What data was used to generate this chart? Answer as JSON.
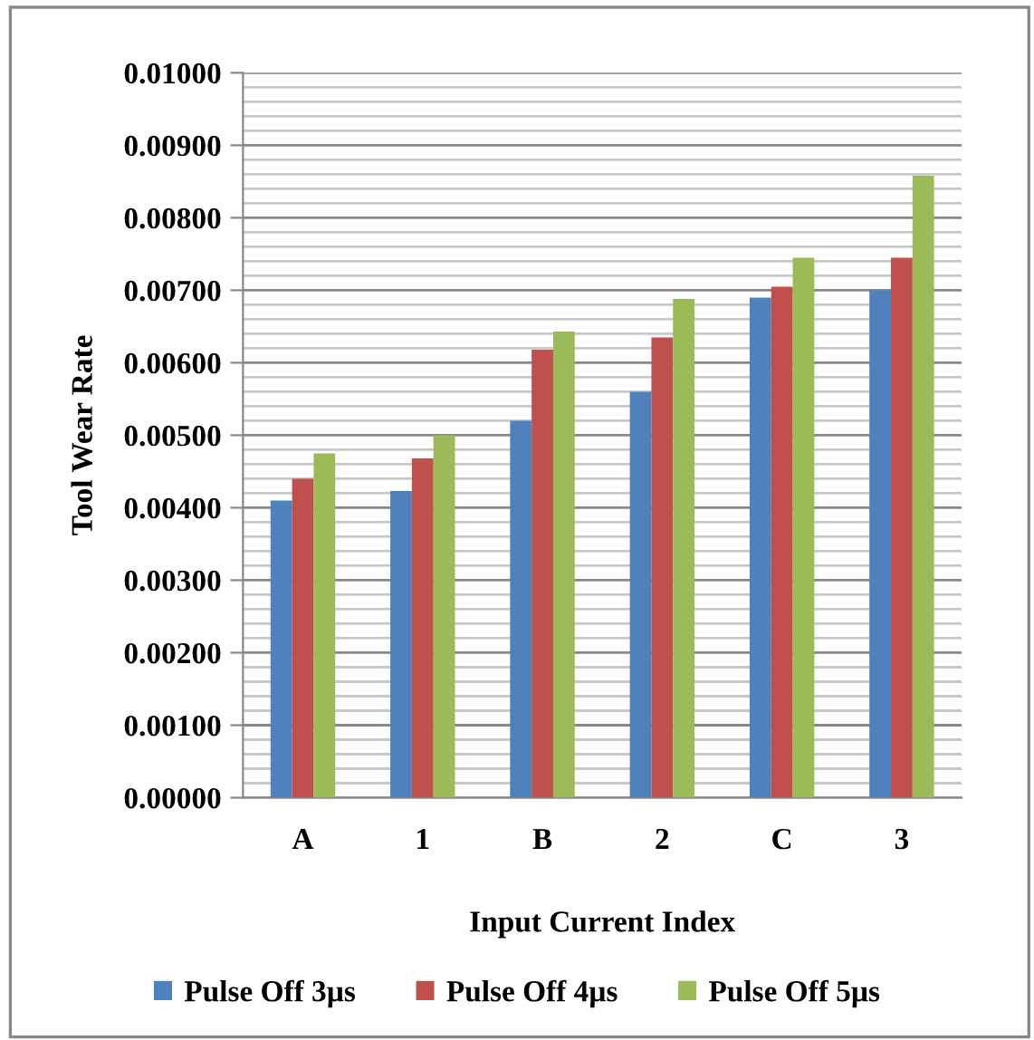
{
  "chart_data": {
    "type": "bar",
    "xlabel": "Input Current Index",
    "ylabel": "Tool Wear Rate",
    "categories": [
      "A",
      "1",
      "B",
      "2",
      "C",
      "3"
    ],
    "series": [
      {
        "name": "Pulse Off 3µs",
        "color": "#4f81bd",
        "values": [
          0.0041,
          0.00423,
          0.0052,
          0.0056,
          0.0069,
          0.007
        ]
      },
      {
        "name": "Pulse Off 4µs",
        "color": "#c0504d",
        "values": [
          0.0044,
          0.00468,
          0.00618,
          0.00635,
          0.00705,
          0.00745
        ]
      },
      {
        "name": "Pulse Off 5µs",
        "color": "#9bbb59",
        "values": [
          0.00475,
          0.005,
          0.00643,
          0.00688,
          0.00745,
          0.00858
        ]
      }
    ],
    "ylim": [
      0,
      0.01
    ],
    "yticks": [
      {
        "value": 0,
        "label": "0.00000"
      },
      {
        "value": 0.001,
        "label": "0.00100"
      },
      {
        "value": 0.002,
        "label": "0.00200"
      },
      {
        "value": 0.003,
        "label": "0.00300"
      },
      {
        "value": 0.004,
        "label": "0.00400"
      },
      {
        "value": 0.005,
        "label": "0.00500"
      },
      {
        "value": 0.006,
        "label": "0.00600"
      },
      {
        "value": 0.007,
        "label": "0.00700"
      },
      {
        "value": 0.008,
        "label": "0.00800"
      },
      {
        "value": 0.009,
        "label": "0.00900"
      },
      {
        "value": 0.01,
        "label": "0.01000"
      }
    ],
    "grid": "y",
    "legend": "bottom"
  }
}
